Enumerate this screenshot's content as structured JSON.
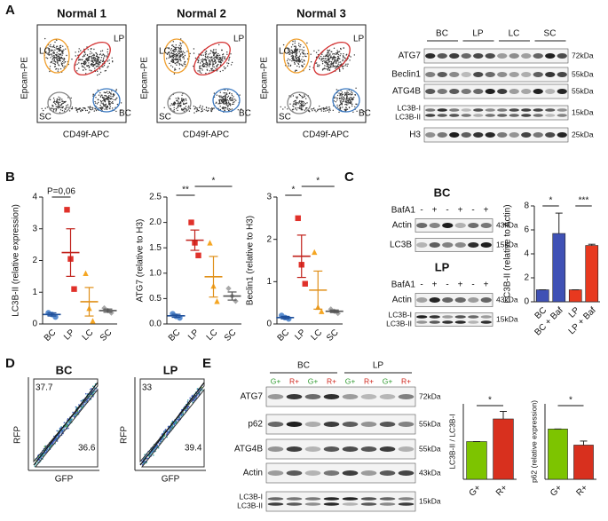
{
  "panel_labels": [
    "A",
    "B",
    "C",
    "D",
    "E"
  ],
  "panel_a": {
    "plots": [
      {
        "title": "Normal 1"
      },
      {
        "title": "Normal 2"
      },
      {
        "title": "Normal 3"
      }
    ],
    "y_label": "Epcam-PE",
    "x_label": "CD49f-APC",
    "gates": [
      "LC",
      "LP",
      "SC",
      "BC"
    ],
    "blot": {
      "groups": [
        "BC",
        "LP",
        "LC",
        "SC"
      ],
      "rows": [
        {
          "label": "ATG7",
          "size": "72kDa"
        },
        {
          "label": "Beclin1",
          "size": "55kDa"
        },
        {
          "label": "ATG4B",
          "size": "55kDa"
        },
        {
          "label": [
            "LC3B-I",
            "LC3B-II"
          ],
          "size": "15kDa"
        },
        {
          "label": "H3",
          "size": "25kDa"
        }
      ]
    }
  },
  "panel_c": {
    "blots": [
      {
        "title": "BC",
        "treatment": "BafA1",
        "signs": [
          "-",
          "+",
          "-",
          "+",
          "-",
          "+"
        ],
        "rows": [
          {
            "label": "Actin",
            "size": "43kDa"
          },
          {
            "label": "LC3B",
            "size": "15kDa"
          }
        ]
      },
      {
        "title": "LP",
        "treatment": "BafA1",
        "signs": [
          "-",
          "+",
          "-",
          "+",
          "-",
          "+"
        ],
        "rows": [
          {
            "label": "Actin",
            "size": "43kDa"
          },
          {
            "label": [
              "LC3B-I",
              "LC3B-II"
            ],
            "size": "15kDa"
          }
        ]
      }
    ]
  },
  "panel_d": {
    "plots": [
      {
        "title": "BC",
        "gates": [
          37.7,
          36.6
        ]
      },
      {
        "title": "LP",
        "gates": [
          33,
          39.4
        ]
      }
    ],
    "y_label": "RFP",
    "x_label": "GFP"
  },
  "panel_e": {
    "groups": [
      "BC",
      "LP"
    ],
    "lanes": [
      "G+",
      "R+",
      "G+",
      "R+",
      "G+",
      "R+",
      "G+",
      "R+"
    ],
    "lane_colors": {
      "G+": "#2e9a2e",
      "R+": "#d0261c"
    },
    "rows": [
      {
        "label": "ATG7",
        "size": "72kDa"
      },
      {
        "label": "p62",
        "size": "55kDa"
      },
      {
        "label": "ATG4B",
        "size": "55kDa"
      },
      {
        "label": "Actin",
        "size": "43kDa"
      },
      {
        "label": [
          "LC3B-I",
          "LC3B-II"
        ],
        "size": "15kDa"
      }
    ]
  },
  "chart_data": [
    {
      "type": "dot",
      "y_label": "LC3B-II (relative expression)",
      "categories": [
        "BC",
        "LP",
        "LC",
        "SC"
      ],
      "colors": [
        "#5b8ed0",
        "#e0312a",
        "#f5a623",
        "#a8a8a8"
      ],
      "markers": [
        "circle",
        "square",
        "triangle",
        "diamond"
      ],
      "points": [
        [
          0.35,
          0.3,
          0.22
        ],
        [
          3.6,
          2.05,
          1.1
        ],
        [
          1.6,
          0.5,
          0.1
        ],
        [
          0.5,
          0.42,
          0.35
        ]
      ],
      "means": [
        0.3,
        2.25,
        0.7,
        0.42
      ],
      "errors": [
        0.05,
        0.75,
        0.45,
        0.05
      ],
      "ylim": [
        0,
        4
      ],
      "yticks": [
        0,
        1,
        2,
        3,
        4
      ],
      "annotations": [
        "P=0,06"
      ]
    },
    {
      "type": "dot",
      "y_label": "ATG7 (relative to H3)",
      "categories": [
        "BC",
        "LP",
        "LC",
        "SC"
      ],
      "colors": [
        "#5b8ed0",
        "#e0312a",
        "#f5a623",
        "#a8a8a8"
      ],
      "markers": [
        "circle",
        "square",
        "triangle",
        "diamond"
      ],
      "points": [
        [
          0.2,
          0.15,
          0.12
        ],
        [
          2.0,
          1.6,
          1.35
        ],
        [
          1.6,
          0.75,
          0.45
        ],
        [
          0.7,
          0.55,
          0.45
        ]
      ],
      "means": [
        0.16,
        1.65,
        0.93,
        0.55
      ],
      "errors": [
        0.03,
        0.2,
        0.4,
        0.08
      ],
      "ylim": [
        0,
        2.5
      ],
      "yticks": [
        {
          "value": 0,
          "label": "0.0"
        },
        0.5,
        {
          "value": 1,
          "label": "1.0"
        },
        1.5,
        {
          "value": 2,
          "label": "2.0"
        },
        2.5
      ],
      "annotations": [
        "**",
        "*"
      ]
    },
    {
      "type": "dot",
      "y_label": "Beclin1 (relative to H3)",
      "categories": [
        "BC",
        "LP",
        "LC",
        "SC"
      ],
      "colors": [
        "#5b8ed0",
        "#e0312a",
        "#f5a623",
        "#a8a8a8"
      ],
      "markers": [
        "circle",
        "square",
        "triangle",
        "diamond"
      ],
      "points": [
        [
          0.2,
          0.15,
          0.12
        ],
        [
          2.5,
          1.4,
          0.95
        ],
        [
          1.7,
          0.4,
          0.3
        ],
        [
          0.35,
          0.3,
          0.25
        ]
      ],
      "means": [
        0.15,
        1.6,
        0.8,
        0.3
      ],
      "errors": [
        0.03,
        0.5,
        0.45,
        0.03
      ],
      "ylim": [
        0,
        3
      ],
      "yticks": [
        0,
        1,
        2,
        3
      ],
      "annotations": [
        "*",
        "*"
      ]
    },
    {
      "type": "bar",
      "y_label": "LC3B-II (relative to Actin)",
      "categories": [
        "BC",
        "BC + Baf",
        "LP",
        "LP + Baf"
      ],
      "colors": [
        "#3f51b5",
        "#3f51b5",
        "#e8391f",
        "#e8391f"
      ],
      "values": [
        1,
        5.7,
        1,
        4.7
      ],
      "errors": [
        0,
        1.7,
        0,
        0.1
      ],
      "ylim": [
        0,
        8
      ],
      "yticks": [
        0,
        2,
        4,
        6,
        8
      ],
      "annotations": [
        "*",
        "***"
      ]
    },
    {
      "type": "bar",
      "y_label": "LC3B-II / LC3B-I",
      "categories": [
        "G+",
        "R+"
      ],
      "colors": [
        "#7dc400",
        "#d8301e"
      ],
      "values": [
        1,
        1.6
      ],
      "errors": [
        0,
        0.2
      ],
      "ylim": [
        0,
        2
      ],
      "annotations": [
        "*"
      ]
    },
    {
      "type": "bar",
      "y_label": "p62 (relative expression)",
      "categories": [
        "G+",
        "R+"
      ],
      "colors": [
        "#7dc400",
        "#d8301e"
      ],
      "values": [
        1,
        0.68
      ],
      "errors": [
        0,
        0.08
      ],
      "ylim": [
        0,
        1.5
      ],
      "annotations": [
        "*"
      ]
    }
  ]
}
